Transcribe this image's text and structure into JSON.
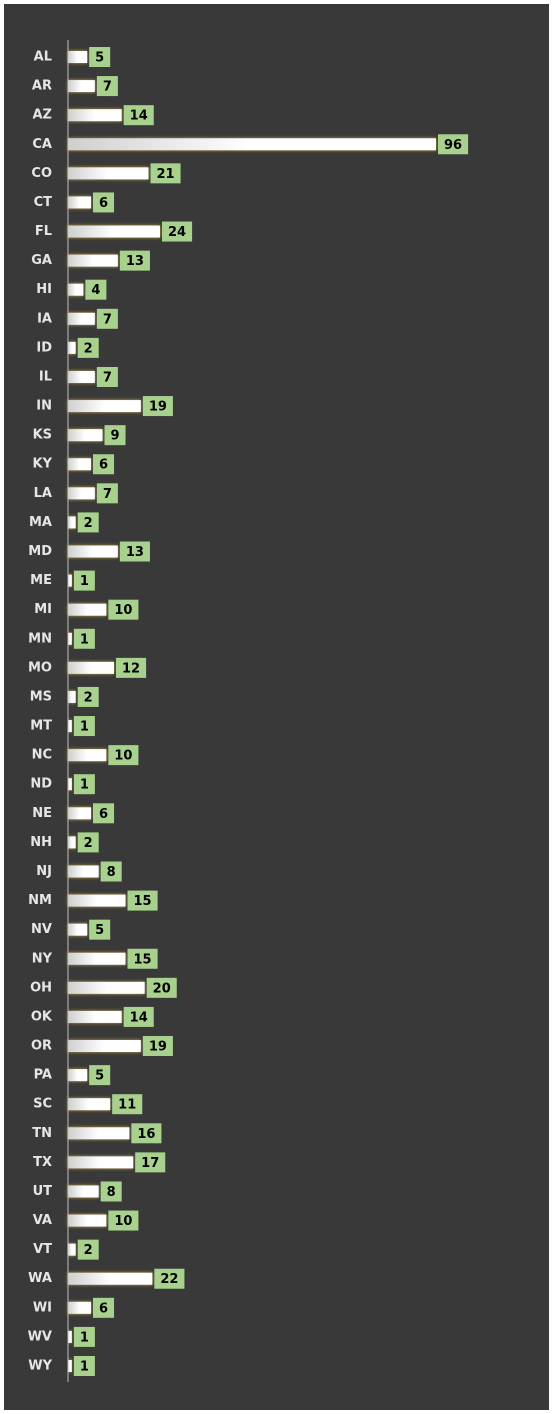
{
  "chart_data": {
    "type": "bar",
    "orientation": "horizontal",
    "categories": [
      "AL",
      "AR",
      "AZ",
      "CA",
      "CO",
      "CT",
      "FL",
      "GA",
      "HI",
      "IA",
      "ID",
      "IL",
      "IN",
      "KS",
      "KY",
      "LA",
      "MA",
      "MD",
      "ME",
      "MI",
      "MN",
      "MO",
      "MS",
      "MT",
      "NC",
      "ND",
      "NE",
      "NH",
      "NJ",
      "NM",
      "NV",
      "NY",
      "OH",
      "OK",
      "OR",
      "PA",
      "SC",
      "TN",
      "TX",
      "UT",
      "VA",
      "VT",
      "WA",
      "WI",
      "WV",
      "WY"
    ],
    "values": [
      5,
      7,
      14,
      96,
      21,
      6,
      24,
      13,
      4,
      7,
      2,
      7,
      19,
      9,
      6,
      7,
      2,
      13,
      1,
      10,
      1,
      12,
      2,
      1,
      10,
      1,
      6,
      2,
      8,
      15,
      5,
      15,
      20,
      14,
      19,
      5,
      11,
      16,
      17,
      8,
      10,
      2,
      22,
      6,
      1,
      1
    ],
    "color": "#ffffff",
    "label_color": "#a9d18e"
  }
}
